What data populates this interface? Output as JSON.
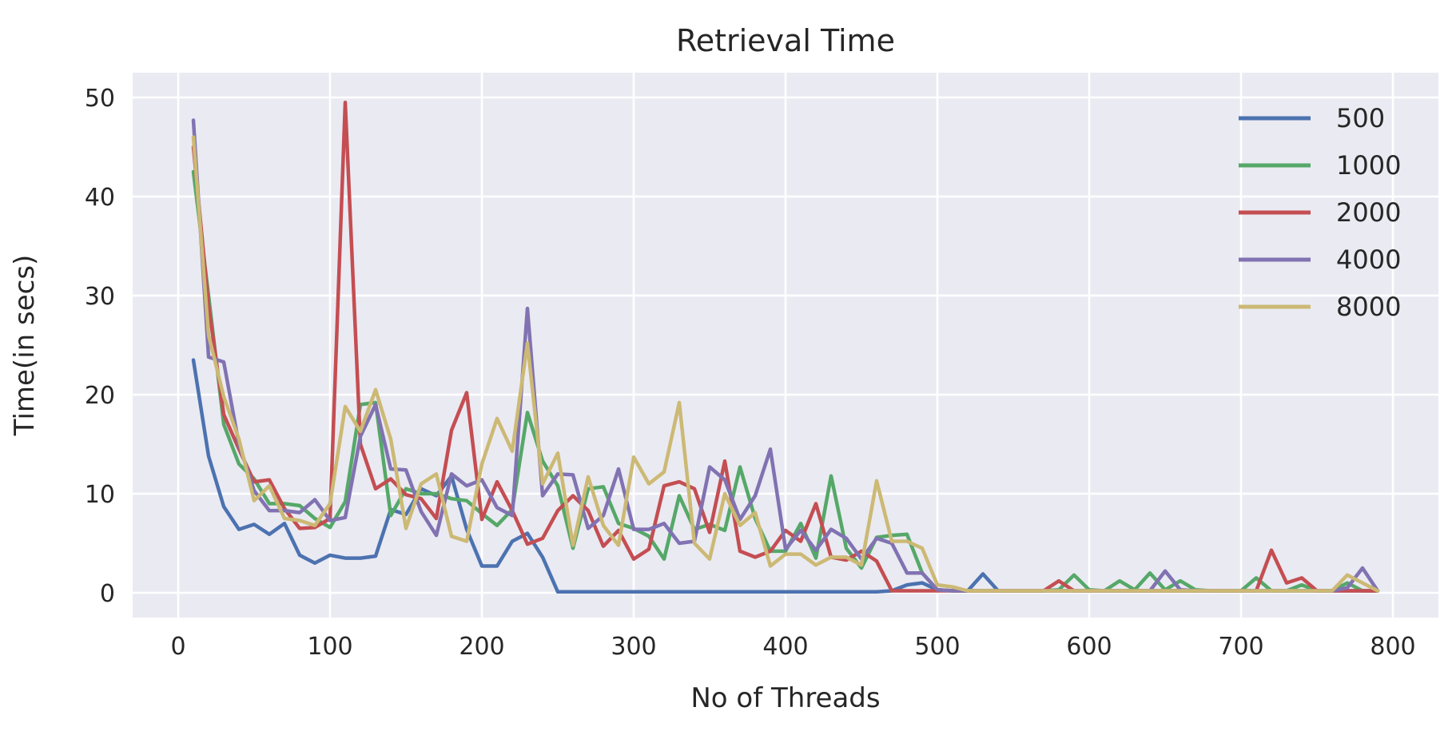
{
  "chart_data": {
    "type": "line",
    "title": "Retrieval Time",
    "xlabel": "No of Threads",
    "ylabel": "Time(in secs)",
    "xlim": [
      -30,
      830
    ],
    "ylim": [
      -2.5,
      52.5
    ],
    "xticks": [
      0,
      100,
      200,
      300,
      400,
      500,
      600,
      700,
      800
    ],
    "yticks": [
      0,
      10,
      20,
      30,
      40,
      50
    ],
    "grid": true,
    "legend_position": "top-right",
    "background": "#eaeaf2",
    "x": [
      10,
      20,
      30,
      40,
      50,
      60,
      70,
      80,
      90,
      100,
      110,
      120,
      130,
      140,
      150,
      160,
      170,
      180,
      190,
      200,
      210,
      220,
      230,
      240,
      250,
      260,
      270,
      280,
      290,
      300,
      310,
      320,
      330,
      340,
      350,
      360,
      370,
      380,
      390,
      400,
      410,
      420,
      430,
      440,
      450,
      460,
      470,
      480,
      490,
      500,
      510,
      520,
      530,
      540,
      550,
      560,
      570,
      580,
      590,
      600,
      610,
      620,
      630,
      640,
      650,
      660,
      670,
      680,
      690,
      700,
      710,
      720,
      730,
      740,
      750,
      760,
      770,
      780,
      790
    ],
    "series": [
      {
        "name": "500",
        "color": "#4c72b0",
        "values": [
          23.5,
          13.8,
          8.7,
          6.4,
          6.9,
          5.9,
          7.0,
          3.8,
          3.0,
          3.8,
          3.5,
          3.5,
          3.7,
          8.4,
          7.9,
          10.5,
          9.8,
          11.8,
          6.4,
          2.7,
          2.7,
          5.2,
          6.0,
          3.6,
          0.1,
          0.1,
          0.1,
          0.1,
          0.1,
          0.1,
          0.1,
          0.1,
          0.1,
          0.1,
          0.1,
          0.1,
          0.1,
          0.1,
          0.1,
          0.1,
          0.1,
          0.1,
          0.1,
          0.1,
          0.1,
          0.1,
          0.2,
          0.8,
          1.0,
          0.3,
          0.2,
          0.2,
          1.9,
          0.2,
          0.2,
          0.2,
          0.2,
          0.2,
          0.2,
          0.2,
          0.2,
          0.2,
          0.2,
          0.2,
          0.2,
          0.2,
          0.2,
          0.2,
          0.2,
          0.2,
          0.2,
          0.2,
          0.2,
          0.2,
          0.2,
          0.2,
          0.2,
          0.2,
          0.2
        ]
      },
      {
        "name": "1000",
        "color": "#55a868",
        "values": [
          42.5,
          30.0,
          17.0,
          13.0,
          11.5,
          9.0,
          9.0,
          8.8,
          7.5,
          6.6,
          9.2,
          19.0,
          19.2,
          7.8,
          10.5,
          10.0,
          10.0,
          9.5,
          9.3,
          8.0,
          6.8,
          8.4,
          18.2,
          13.3,
          10.8,
          4.5,
          10.5,
          10.7,
          7.0,
          6.5,
          5.7,
          3.4,
          9.8,
          6.4,
          6.9,
          6.3,
          12.7,
          7.5,
          4.2,
          4.2,
          7.0,
          3.5,
          11.8,
          4.5,
          2.5,
          5.6,
          5.8,
          5.9,
          2.0,
          0.3,
          0.2,
          0.2,
          0.2,
          0.2,
          0.2,
          0.2,
          0.2,
          0.3,
          1.8,
          0.3,
          0.2,
          1.2,
          0.3,
          2.0,
          0.3,
          1.2,
          0.3,
          0.2,
          0.2,
          0.2,
          1.5,
          0.2,
          0.2,
          0.8,
          0.2,
          0.2,
          1.0,
          0.2,
          0.2
        ]
      },
      {
        "name": "2000",
        "color": "#c44e52",
        "values": [
          45.0,
          29.0,
          18.0,
          14.5,
          11.2,
          11.4,
          8.5,
          6.5,
          6.6,
          7.5,
          49.5,
          15.0,
          10.5,
          11.5,
          9.9,
          9.5,
          7.5,
          16.4,
          20.2,
          7.4,
          11.2,
          8.3,
          4.9,
          5.5,
          8.3,
          9.8,
          8.3,
          4.7,
          6.3,
          3.4,
          4.4,
          10.8,
          11.2,
          10.5,
          6.1,
          13.3,
          4.2,
          3.6,
          4.2,
          6.3,
          5.2,
          9.0,
          3.6,
          3.3,
          4.2,
          3.2,
          0.2,
          0.2,
          0.2,
          0.2,
          0.2,
          0.2,
          0.2,
          0.2,
          0.2,
          0.2,
          0.2,
          1.2,
          0.2,
          0.2,
          0.2,
          0.2,
          0.2,
          0.2,
          0.2,
          0.2,
          0.2,
          0.2,
          0.2,
          0.2,
          0.2,
          4.3,
          1.0,
          1.5,
          0.2,
          0.2,
          0.2,
          0.2,
          0.2
        ]
      },
      {
        "name": "4000",
        "color": "#8172b2",
        "values": [
          47.7,
          23.8,
          23.3,
          15.0,
          10.3,
          8.3,
          8.3,
          8.1,
          9.4,
          7.3,
          7.6,
          15.8,
          19.0,
          12.5,
          12.4,
          8.2,
          5.8,
          12.0,
          10.8,
          11.4,
          8.6,
          7.8,
          28.7,
          9.8,
          12.0,
          11.9,
          6.5,
          7.8,
          12.5,
          6.4,
          6.4,
          7.0,
          5.0,
          5.2,
          12.7,
          11.4,
          7.4,
          9.8,
          14.5,
          4.4,
          6.3,
          4.3,
          6.4,
          5.5,
          3.4,
          5.5,
          5.0,
          2.0,
          2.0,
          0.3,
          0.2,
          0.2,
          0.2,
          0.2,
          0.2,
          0.2,
          0.2,
          0.2,
          0.2,
          0.2,
          0.2,
          0.2,
          0.2,
          0.2,
          2.2,
          0.3,
          0.2,
          0.2,
          0.2,
          0.2,
          0.2,
          0.2,
          0.2,
          0.2,
          0.2,
          0.2,
          0.5,
          2.5,
          0.2
        ]
      },
      {
        "name": "8000",
        "color": "#ccb974",
        "values": [
          46.0,
          26.0,
          19.8,
          15.5,
          9.3,
          10.8,
          7.5,
          7.3,
          6.8,
          9.0,
          18.8,
          16.3,
          20.5,
          15.5,
          6.5,
          11.0,
          12.0,
          5.7,
          5.2,
          13.0,
          17.6,
          14.3,
          25.2,
          11.0,
          14.1,
          4.8,
          11.7,
          6.8,
          4.8,
          13.7,
          11.0,
          12.2,
          19.2,
          5.0,
          3.4,
          10.0,
          6.8,
          8.1,
          2.7,
          3.9,
          3.9,
          2.8,
          3.6,
          3.6,
          2.8,
          11.3,
          5.2,
          5.2,
          4.5,
          0.8,
          0.6,
          0.2,
          0.2,
          0.2,
          0.2,
          0.2,
          0.2,
          0.2,
          0.2,
          0.2,
          0.2,
          0.2,
          0.2,
          0.2,
          0.2,
          0.2,
          0.2,
          0.2,
          0.2,
          0.2,
          0.2,
          0.2,
          0.2,
          0.2,
          0.2,
          0.2,
          1.8,
          1.0,
          0.2
        ]
      }
    ]
  }
}
